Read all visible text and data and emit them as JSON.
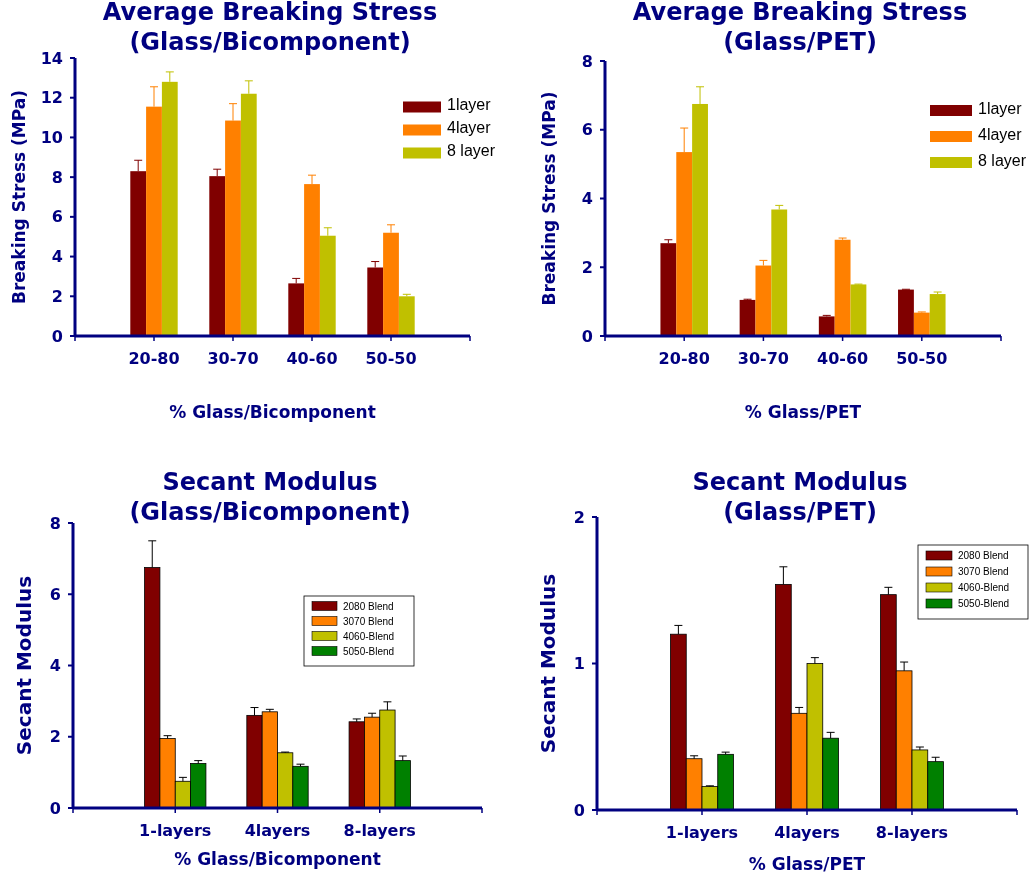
{
  "chart_data": [
    {
      "type": "bar",
      "title": "Average Breaking Stress\n(Glass/Bicomponent)",
      "xlabel": "% Glass/Bicomponent",
      "ylabel": "Breaking Stress (MPa)",
      "categories": [
        "20-80",
        "30-70",
        "40-60",
        "50-50"
      ],
      "ylim": [
        0,
        14
      ],
      "yticks": [
        0,
        2,
        4,
        6,
        8,
        10,
        12,
        14
      ],
      "grid": false,
      "legend": "top right",
      "series": [
        {
          "name": "1layer",
          "color": "#800000",
          "values": [
            8.3,
            8.05,
            2.65,
            3.45
          ],
          "errors": [
            [
              8.3,
              8.85
            ],
            [
              8.05,
              8.4
            ],
            [
              2.65,
              2.9
            ],
            [
              3.45,
              3.75
            ]
          ]
        },
        {
          "name": "4layer",
          "color": "#ff8000",
          "values": [
            11.55,
            10.85,
            7.65,
            5.2
          ],
          "errors": [
            [
              11.55,
              12.55
            ],
            [
              10.85,
              11.7
            ],
            [
              7.65,
              8.1
            ],
            [
              5.2,
              5.6
            ]
          ]
        },
        {
          "name": "8 layer",
          "color": "#c0c000",
          "values": [
            12.8,
            12.2,
            5.05,
            2.0
          ],
          "errors": [
            [
              12.8,
              13.3
            ],
            [
              12.2,
              12.85
            ],
            [
              5.05,
              5.45
            ],
            [
              2.0,
              2.1
            ]
          ]
        }
      ]
    },
    {
      "type": "bar",
      "title": "Average Breaking Stress\n(Glass/PET)",
      "xlabel": "% Glass/PET",
      "ylabel": "Breaking Stress (MPa)",
      "categories": [
        "20-80",
        "30-70",
        "40-60",
        "50-50"
      ],
      "ylim": [
        0,
        8
      ],
      "yticks": [
        0,
        2,
        4,
        6,
        8
      ],
      "grid": false,
      "legend": "top right",
      "series": [
        {
          "name": "1layer",
          "color": "#800000",
          "values": [
            2.7,
            1.05,
            0.57,
            1.35
          ],
          "errors": [
            [
              2.7,
              2.8
            ],
            [
              1.05,
              1.07
            ],
            [
              0.57,
              0.6
            ],
            [
              1.35,
              1.36
            ]
          ]
        },
        {
          "name": "4layer",
          "color": "#ff8000",
          "values": [
            5.35,
            2.05,
            2.8,
            0.68
          ],
          "errors": [
            [
              5.35,
              6.05
            ],
            [
              2.05,
              2.2
            ],
            [
              2.8,
              2.85
            ],
            [
              0.68,
              0.7
            ]
          ]
        },
        {
          "name": "8 layer",
          "color": "#c0c000",
          "values": [
            6.75,
            3.68,
            1.5,
            1.22
          ],
          "errors": [
            [
              6.75,
              7.25
            ],
            [
              3.68,
              3.8
            ],
            [
              1.5,
              1.51
            ],
            [
              1.22,
              1.28
            ]
          ]
        }
      ]
    },
    {
      "type": "bar",
      "title": "Secant Modulus\n(Glass/Bicomponent)",
      "xlabel": "% Glass/Bicomponent",
      "ylabel": "Secant Modulus",
      "categories": [
        "1-layers",
        "4layers",
        "8-layers"
      ],
      "ylim": [
        0,
        8
      ],
      "yticks": [
        0,
        2,
        4,
        6,
        8
      ],
      "grid": false,
      "legend": "right",
      "series": [
        {
          "name": "2080 Blend",
          "color": "#800000",
          "values": [
            6.75,
            2.6,
            2.42
          ],
          "errors": [
            [
              6.75,
              7.5
            ],
            [
              2.6,
              2.82
            ],
            [
              2.42,
              2.5
            ]
          ]
        },
        {
          "name": "3070 Blend",
          "color": "#ff8000",
          "values": [
            1.95,
            2.7,
            2.55
          ],
          "errors": [
            [
              1.95,
              2.03
            ],
            [
              2.7,
              2.77
            ],
            [
              2.55,
              2.66
            ]
          ]
        },
        {
          "name": "4060-Blend",
          "color": "#c0c000",
          "values": [
            0.75,
            1.55,
            2.75
          ],
          "errors": [
            [
              0.75,
              0.86
            ],
            [
              1.55,
              1.57
            ],
            [
              2.75,
              2.98
            ]
          ]
        },
        {
          "name": "5050-Blend",
          "color": "#008000",
          "values": [
            1.25,
            1.17,
            1.33
          ],
          "errors": [
            [
              1.25,
              1.33
            ],
            [
              1.17,
              1.23
            ],
            [
              1.33,
              1.46
            ]
          ]
        }
      ]
    },
    {
      "type": "bar",
      "title": "Secant Modulus\n(Glass/PET)",
      "xlabel": "% Glass/PET",
      "ylabel": "Secant Modulus",
      "categories": [
        "1-layers",
        "4layers",
        "8-layers"
      ],
      "ylim": [
        0,
        2
      ],
      "yticks": [
        0,
        1,
        2
      ],
      "grid": false,
      "legend": "top right",
      "series": [
        {
          "name": "2080 Blend",
          "color": "#800000",
          "values": [
            1.2,
            1.54,
            1.47
          ],
          "errors": [
            [
              1.2,
              1.26
            ],
            [
              1.54,
              1.66
            ],
            [
              1.47,
              1.52
            ]
          ]
        },
        {
          "name": "3070 Blend",
          "color": "#ff8000",
          "values": [
            0.35,
            0.66,
            0.95
          ],
          "errors": [
            [
              0.35,
              0.37
            ],
            [
              0.66,
              0.7
            ],
            [
              0.95,
              1.01
            ]
          ]
        },
        {
          "name": "4060-Blend",
          "color": "#c0c000",
          "values": [
            0.16,
            1.0,
            0.41
          ],
          "errors": [
            [
              0.16,
              0.165
            ],
            [
              1.0,
              1.04
            ],
            [
              0.41,
              0.43
            ]
          ]
        },
        {
          "name": "5050-Blend",
          "color": "#008000",
          "values": [
            0.38,
            0.49,
            0.33
          ],
          "errors": [
            [
              0.38,
              0.395
            ],
            [
              0.49,
              0.53
            ],
            [
              0.33,
              0.36
            ]
          ]
        }
      ]
    }
  ]
}
